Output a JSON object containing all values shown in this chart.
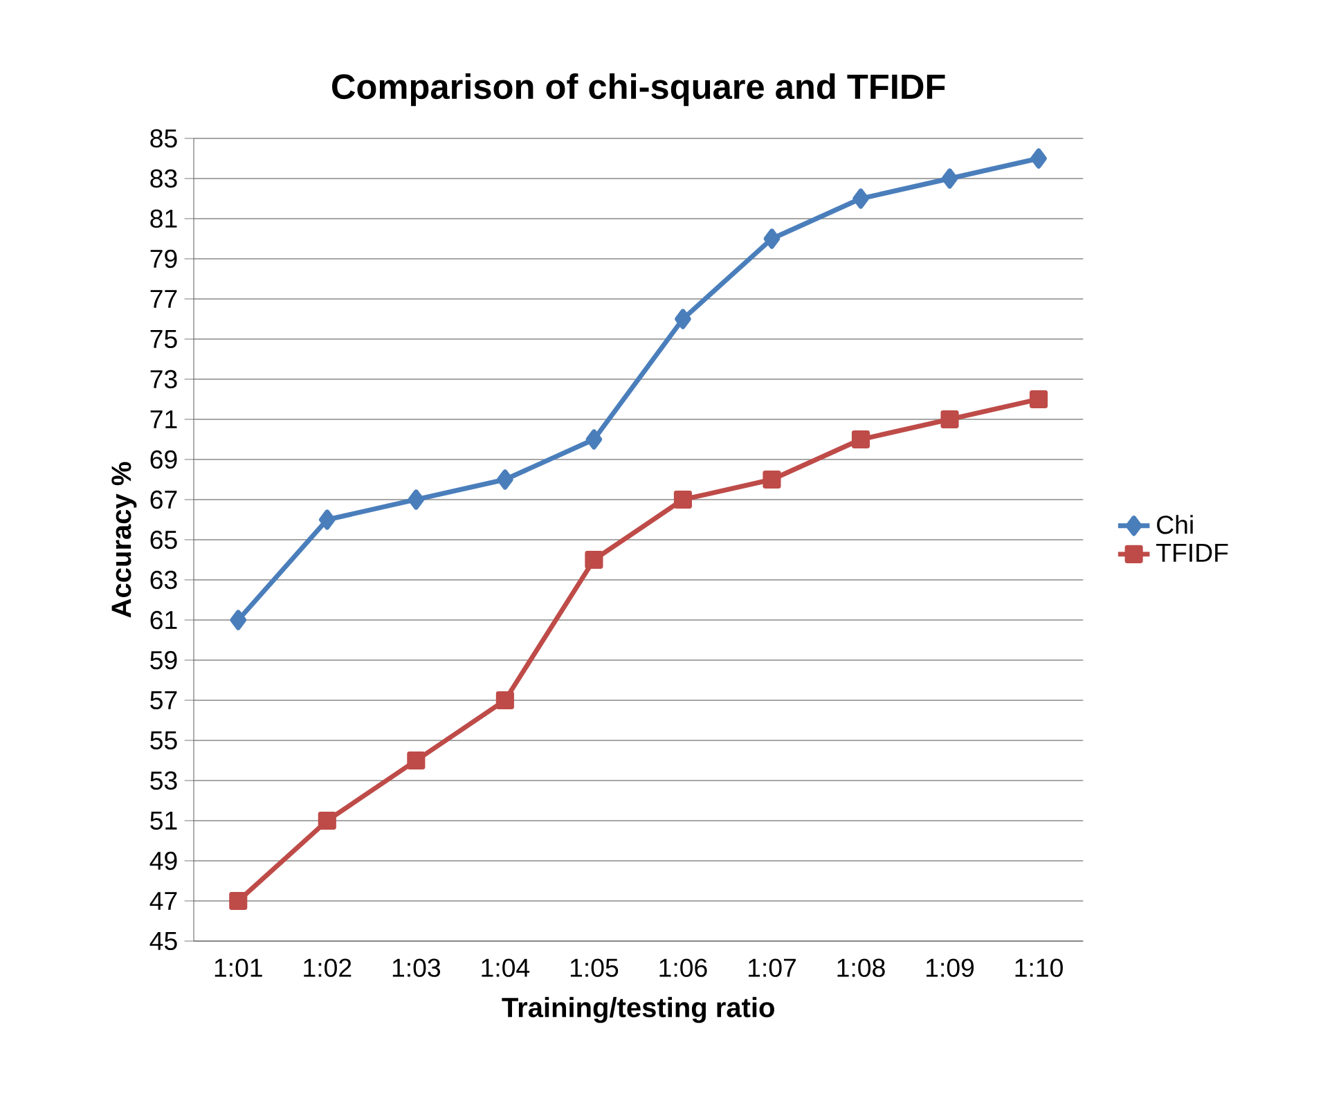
{
  "chart_data": {
    "type": "line",
    "title": "Comparison of chi-square and TFIDF",
    "xlabel": "Training/testing ratio",
    "ylabel": "Accuracy %",
    "categories": [
      "1:01",
      "1:02",
      "1:03",
      "1:04",
      "1:05",
      "1:06",
      "1:07",
      "1:08",
      "1:09",
      "1:10"
    ],
    "series": [
      {
        "name": "Chi",
        "color": "#4a7ebb",
        "marker": "diamond",
        "values": [
          61,
          66,
          67,
          68,
          70,
          76,
          80,
          82,
          83,
          84
        ]
      },
      {
        "name": "TFIDF",
        "color": "#be4b48",
        "marker": "square",
        "values": [
          47,
          51,
          54,
          57,
          64,
          67,
          68,
          70,
          71,
          72
        ]
      }
    ],
    "ylim": [
      45,
      85
    ],
    "yticks": [
      45,
      47,
      49,
      51,
      53,
      55,
      57,
      59,
      61,
      63,
      65,
      67,
      69,
      71,
      73,
      75,
      77,
      79,
      81,
      83,
      85
    ],
    "grid": "y",
    "legend": "right"
  }
}
